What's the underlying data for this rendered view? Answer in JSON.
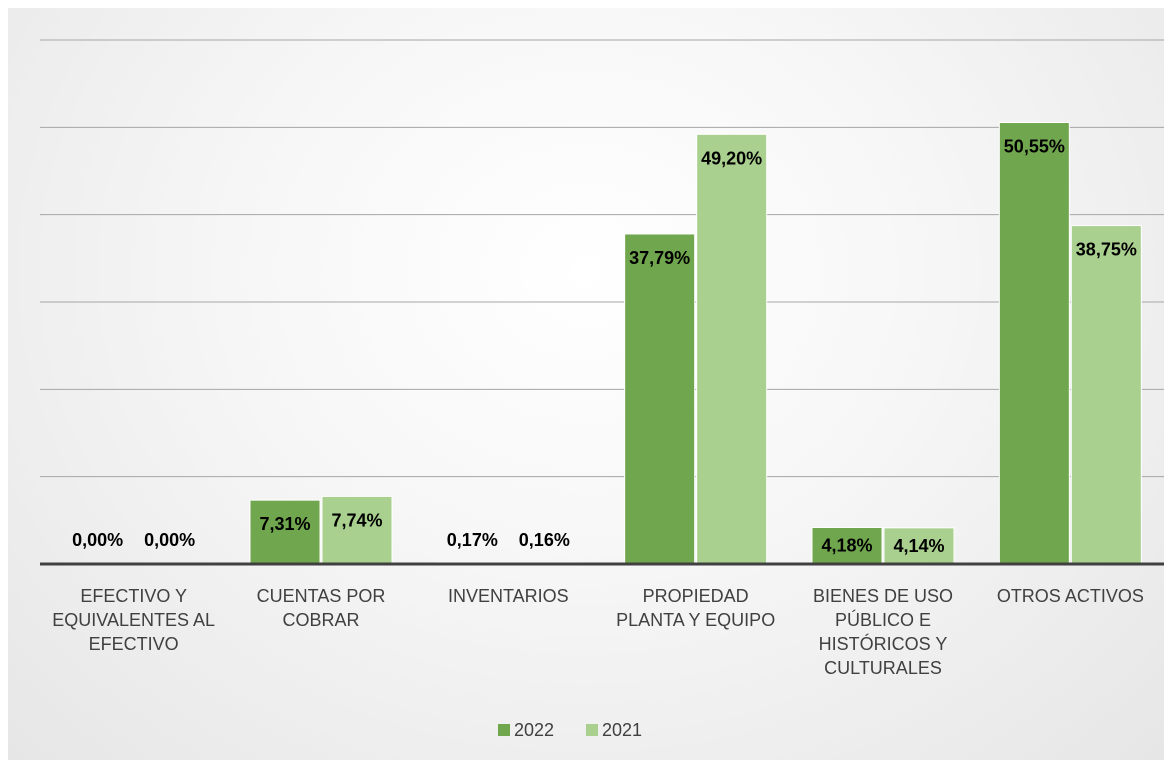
{
  "chart_data": {
    "type": "bar",
    "categories": [
      [
        "EFECTIVO Y",
        "EQUIVALENTES AL",
        "EFECTIVO"
      ],
      [
        "CUENTAS POR",
        "COBRAR"
      ],
      [
        "INVENTARIOS"
      ],
      [
        "PROPIEDAD",
        "PLANTA Y EQUIPO"
      ],
      [
        "BIENES DE USO",
        "PÚBLICO E",
        "HISTÓRICOS Y",
        "CULTURALES"
      ],
      [
        "OTROS ACTIVOS"
      ]
    ],
    "series": [
      {
        "name": "2022",
        "color": "#70a64d",
        "values": [
          0.0,
          7.31,
          0.17,
          37.79,
          4.18,
          50.55
        ],
        "labels": [
          "0,00%",
          "7,31%",
          "0,17%",
          "37,79%",
          "4,18%",
          "50,55%"
        ]
      },
      {
        "name": "2021",
        "color": "#a9d08e",
        "values": [
          0.0,
          7.74,
          0.16,
          49.2,
          4.14,
          38.75
        ],
        "labels": [
          "0,00%",
          "7,74%",
          "0,16%",
          "49,20%",
          "4,14%",
          "38,75%"
        ]
      }
    ],
    "ylim": [
      0,
      60
    ],
    "grid": true,
    "legend": "bottom-center",
    "title": "",
    "xlabel": "",
    "ylabel": ""
  }
}
